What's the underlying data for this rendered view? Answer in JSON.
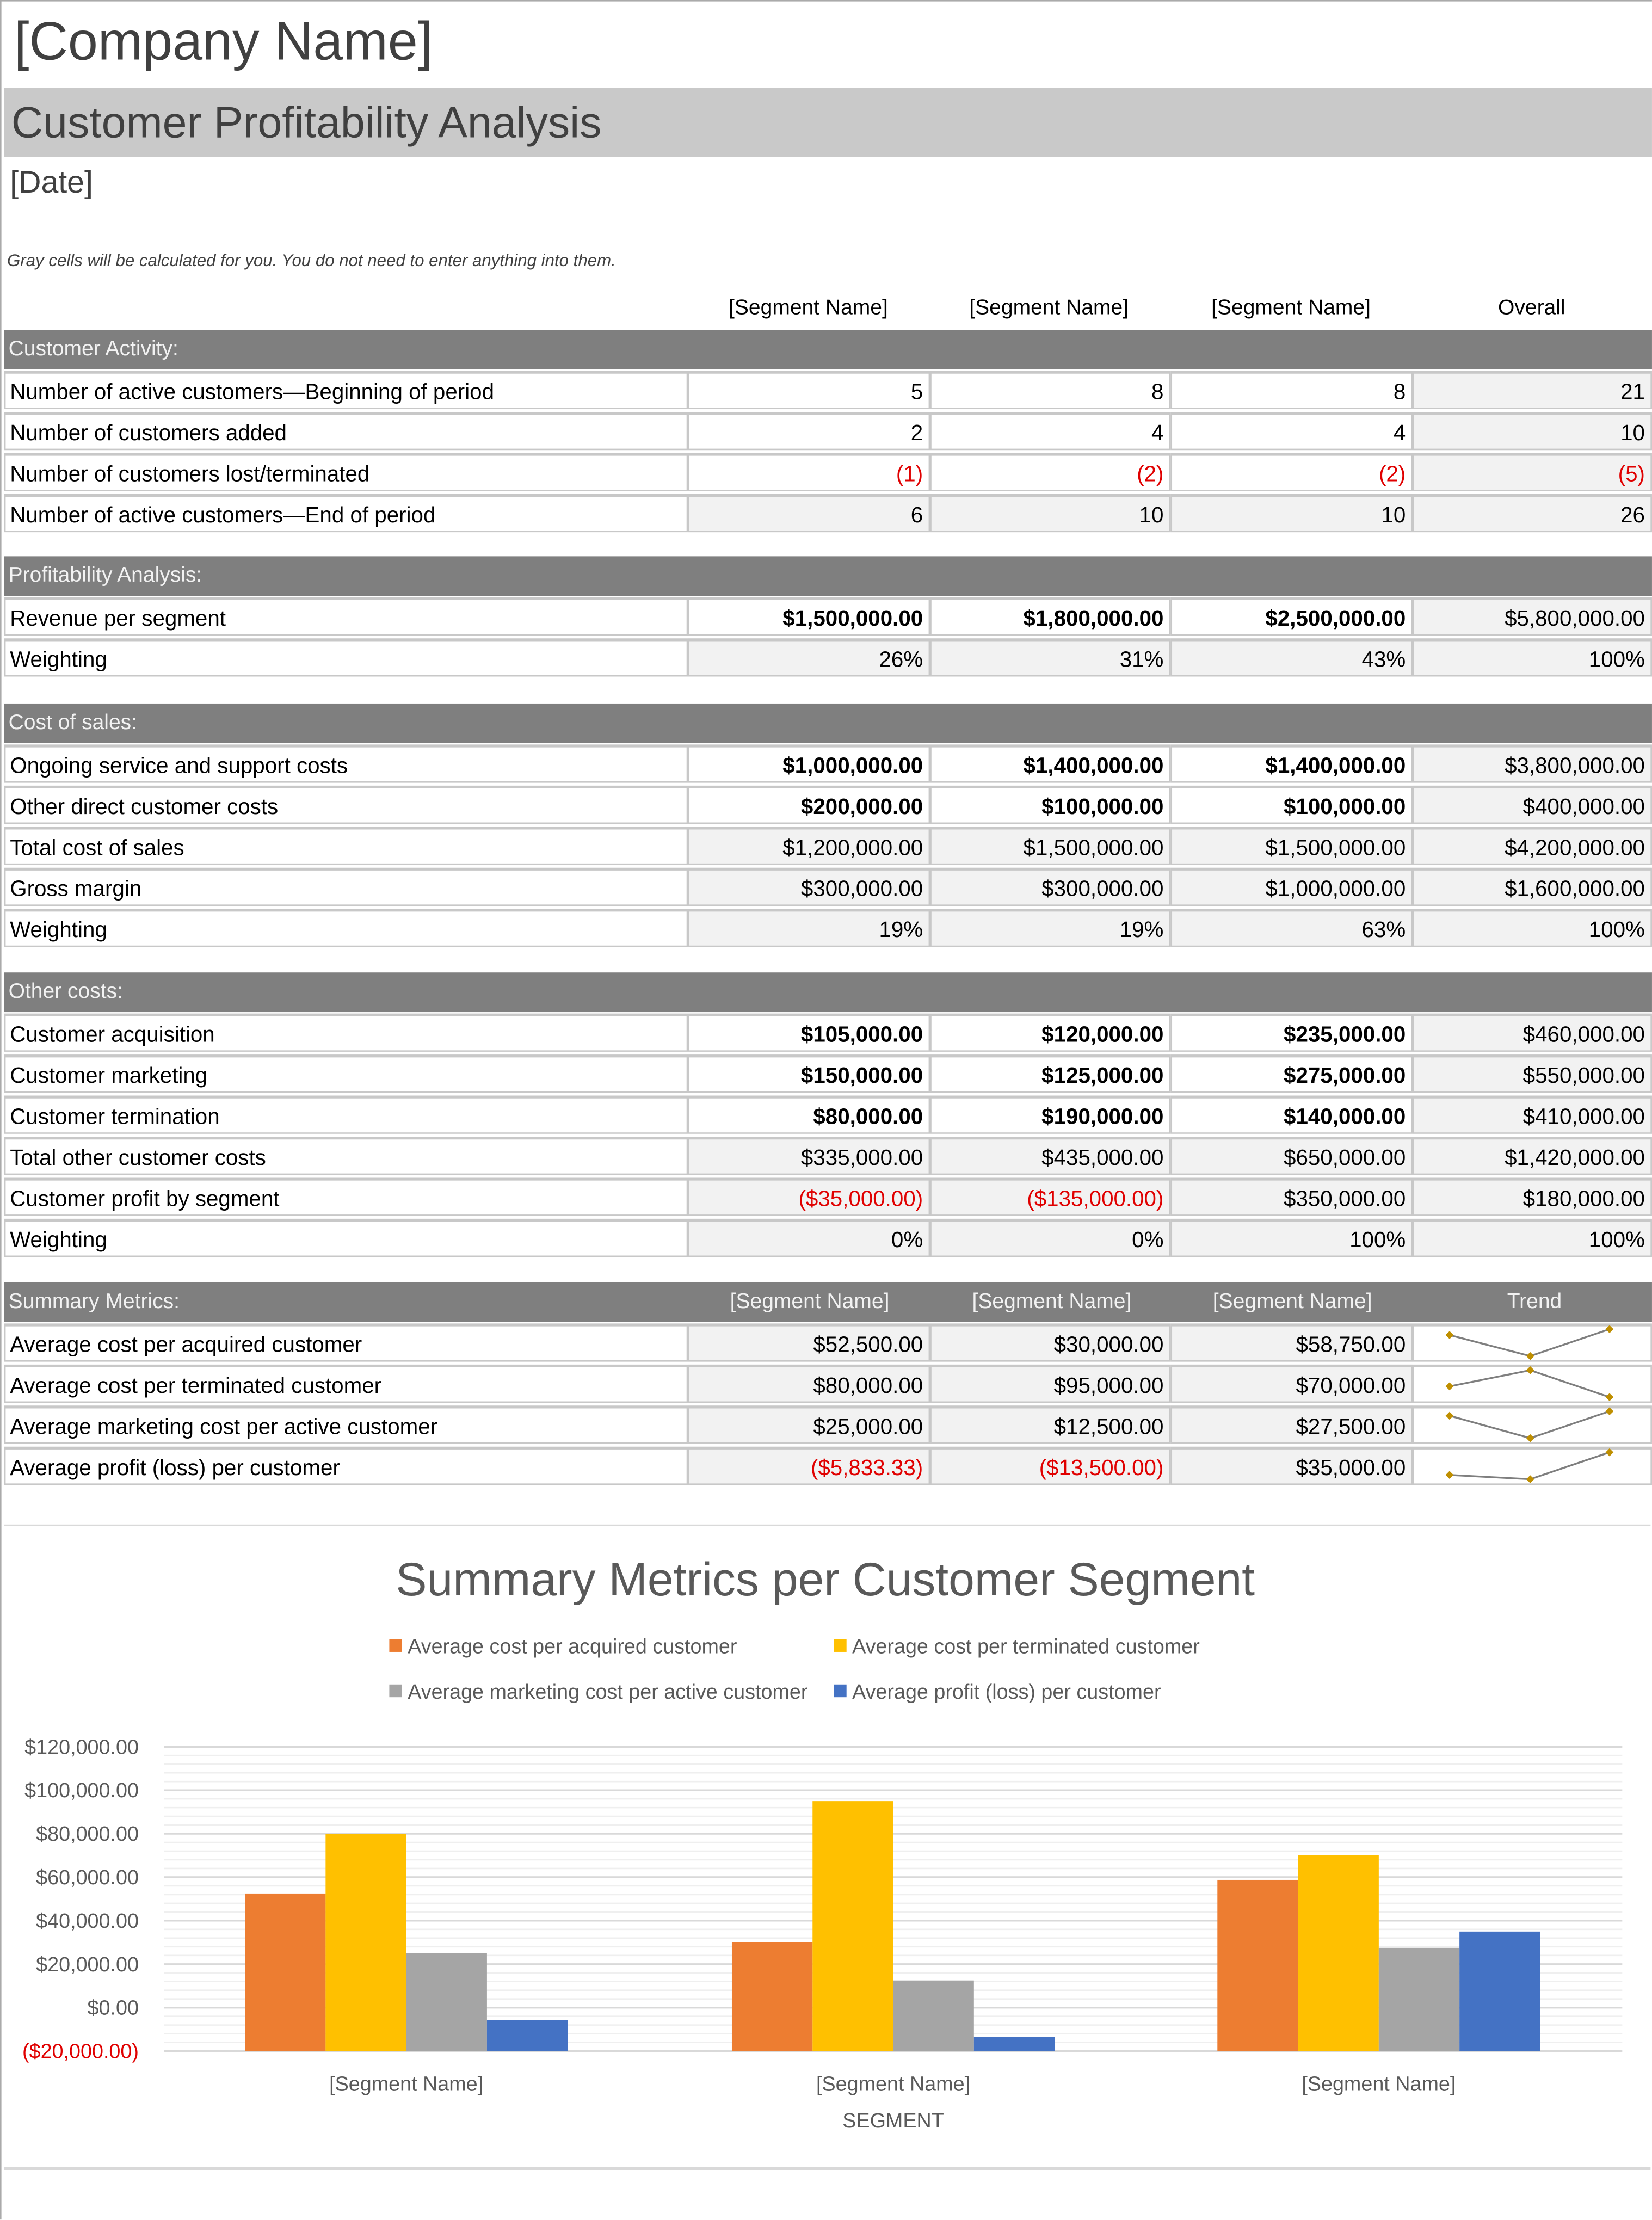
{
  "header": {
    "company": "[Company Name]",
    "title": "Customer Profitability Analysis",
    "date": "[Date]",
    "note": "Gray cells will be calculated for you. You do not need to enter anything into them."
  },
  "columns": [
    "[Segment Name]",
    "[Segment Name]",
    "[Segment Name]",
    "Overall"
  ],
  "sections": [
    {
      "title": "Customer Activity:",
      "rows": [
        {
          "label": "Number of active customers—Beginning of period",
          "values": [
            "5",
            "8",
            "8",
            "21"
          ],
          "calc": false,
          "bold": false
        },
        {
          "label": "Number of customers added",
          "values": [
            "2",
            "4",
            "4",
            "10"
          ],
          "calc": false,
          "bold": false
        },
        {
          "label": "Number of customers lost/terminated",
          "values": [
            "(1)",
            "(2)",
            "(2)",
            "(5)"
          ],
          "calc": false,
          "bold": false
        },
        {
          "label": "Number of active customers—End of period",
          "values": [
            "6",
            "10",
            "10",
            "26"
          ],
          "calc": true,
          "bold": false
        }
      ]
    },
    {
      "title": "Profitability Analysis:",
      "rows": [
        {
          "label": "Revenue per segment",
          "values": [
            "$1,500,000.00",
            "$1,800,000.00",
            "$2,500,000.00",
            "$5,800,000.00"
          ],
          "calc": false,
          "bold": true
        },
        {
          "label": "Weighting",
          "values": [
            "26%",
            "31%",
            "43%",
            "100%"
          ],
          "calc": true,
          "bold": false
        }
      ]
    },
    {
      "title": "Cost of sales:",
      "rows": [
        {
          "label": "Ongoing service and support costs",
          "values": [
            "$1,000,000.00",
            "$1,400,000.00",
            "$1,400,000.00",
            "$3,800,000.00"
          ],
          "calc": false,
          "bold": true
        },
        {
          "label": "Other direct customer costs",
          "values": [
            "$200,000.00",
            "$100,000.00",
            "$100,000.00",
            "$400,000.00"
          ],
          "calc": false,
          "bold": true
        },
        {
          "label": "Total cost of sales",
          "values": [
            "$1,200,000.00",
            "$1,500,000.00",
            "$1,500,000.00",
            "$4,200,000.00"
          ],
          "calc": true,
          "bold": false
        },
        {
          "label": "Gross margin",
          "values": [
            "$300,000.00",
            "$300,000.00",
            "$1,000,000.00",
            "$1,600,000.00"
          ],
          "calc": true,
          "bold": false
        },
        {
          "label": "Weighting",
          "values": [
            "19%",
            "19%",
            "63%",
            "100%"
          ],
          "calc": true,
          "bold": false
        }
      ]
    },
    {
      "title": "Other costs:",
      "rows": [
        {
          "label": "Customer acquisition",
          "values": [
            "$105,000.00",
            "$120,000.00",
            "$235,000.00",
            "$460,000.00"
          ],
          "calc": false,
          "bold": true
        },
        {
          "label": "Customer marketing",
          "values": [
            "$150,000.00",
            "$125,000.00",
            "$275,000.00",
            "$550,000.00"
          ],
          "calc": false,
          "bold": true
        },
        {
          "label": "Customer termination",
          "values": [
            "$80,000.00",
            "$190,000.00",
            "$140,000.00",
            "$410,000.00"
          ],
          "calc": false,
          "bold": true
        },
        {
          "label": "Total other customer costs",
          "values": [
            "$335,000.00",
            "$435,000.00",
            "$650,000.00",
            "$1,420,000.00"
          ],
          "calc": true,
          "bold": false
        },
        {
          "label": "Customer profit by segment",
          "values": [
            "($35,000.00)",
            "($135,000.00)",
            "$350,000.00",
            "$180,000.00"
          ],
          "calc": true,
          "bold": false
        },
        {
          "label": "Weighting",
          "values": [
            "0%",
            "0%",
            "100%",
            "100%"
          ],
          "calc": true,
          "bold": false
        }
      ]
    }
  ],
  "summary": {
    "title": "Summary Metrics:",
    "columns": [
      "[Segment Name]",
      "[Segment Name]",
      "[Segment Name]",
      "Trend"
    ],
    "rows": [
      {
        "label": "Average cost per acquired customer",
        "values": [
          "$52,500.00",
          "$30,000.00",
          "$58,750.00"
        ],
        "trend": [
          52500,
          30000,
          58750
        ]
      },
      {
        "label": "Average cost per terminated customer",
        "values": [
          "$80,000.00",
          "$95,000.00",
          "$70,000.00"
        ],
        "trend": [
          80000,
          95000,
          70000
        ]
      },
      {
        "label": "Average marketing cost per active customer",
        "values": [
          "$25,000.00",
          "$12,500.00",
          "$27,500.00"
        ],
        "trend": [
          25000,
          12500,
          27500
        ]
      },
      {
        "label": "Average profit (loss) per customer",
        "values": [
          "($5,833.33)",
          "($13,500.00)",
          "$35,000.00"
        ],
        "trend": [
          -5833.33,
          -13500,
          35000
        ]
      }
    ],
    "trend_line_color": "#7f7f7f",
    "trend_marker_color": "#bf8f00"
  },
  "colors": {
    "negative": "#e00000",
    "section": "#7f7f7f",
    "calc_cell": "#f2f2f2"
  },
  "chart_data": {
    "type": "bar",
    "title": "Summary Metrics per Customer Segment",
    "categories": [
      "[Segment Name]",
      "[Segment Name]",
      "[Segment Name]"
    ],
    "xlabel": "SEGMENT",
    "ylabel": "",
    "ylim": [
      -20000,
      120000
    ],
    "yticks": [
      "($20,000.00)",
      "$0.00",
      "$20,000.00",
      "$40,000.00",
      "$60,000.00",
      "$80,000.00",
      "$100,000.00",
      "$120,000.00"
    ],
    "ytick_values": [
      -20000,
      0,
      20000,
      40000,
      60000,
      80000,
      100000,
      120000
    ],
    "grid": true,
    "legend_position": "top",
    "series": [
      {
        "name": "Average cost per acquired customer",
        "values": [
          52500,
          30000,
          58750
        ],
        "color": "#ed7d31"
      },
      {
        "name": "Average cost per terminated customer",
        "values": [
          80000,
          95000,
          70000
        ],
        "color": "#ffc000"
      },
      {
        "name": "Average marketing cost per active customer",
        "values": [
          25000,
          12500,
          27500
        ],
        "color": "#a5a5a5"
      },
      {
        "name": "Average profit (loss) per customer",
        "values": [
          -5833.33,
          -13500,
          35000
        ],
        "color": "#4472c4"
      }
    ]
  }
}
